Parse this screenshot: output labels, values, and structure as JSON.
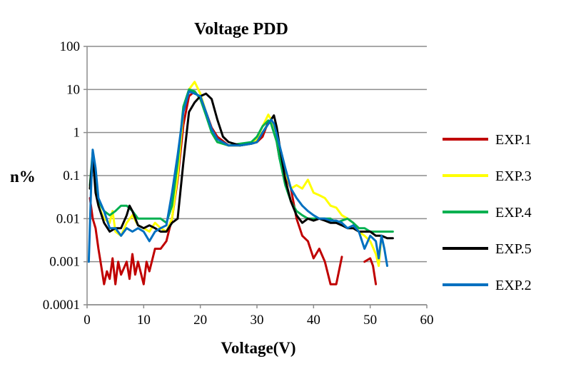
{
  "chart_data": {
    "type": "line",
    "title": "Voltage PDD",
    "xlabel": "Voltage(V)",
    "ylabel": "n%",
    "xlim": [
      0,
      60
    ],
    "ylim": [
      0.0001,
      100
    ],
    "yscale": "log",
    "grid": true,
    "legend_position": "right",
    "x_ticks": [
      "0",
      "10",
      "20",
      "30",
      "40",
      "50",
      "60"
    ],
    "y_ticks": [
      "0.0001",
      "0.001",
      "0.01",
      "0.1",
      "1",
      "10",
      "100"
    ],
    "series": [
      {
        "name": "EXP.1",
        "color": "#c00000",
        "points": [
          [
            0.5,
            0.03
          ],
          [
            1,
            0.01
          ],
          [
            1.5,
            0.006
          ],
          [
            2,
            0.002
          ],
          [
            2.5,
            0.0008
          ],
          [
            3,
            0.0003
          ],
          [
            3.5,
            0.0006
          ],
          [
            4,
            0.0004
          ],
          [
            4.5,
            0.0012
          ],
          [
            5,
            0.0003
          ],
          [
            5.5,
            0.001
          ],
          [
            6,
            0.0005
          ],
          [
            7,
            0.001
          ],
          [
            7.5,
            0.0004
          ],
          [
            8,
            0.0015
          ],
          [
            8.5,
            0.0005
          ],
          [
            9,
            0.001
          ],
          [
            10,
            0.0003
          ],
          [
            10.5,
            0.001
          ],
          [
            11,
            0.0006
          ],
          [
            12,
            0.002
          ],
          [
            13,
            0.002
          ],
          [
            14,
            0.003
          ],
          [
            15,
            0.01
          ],
          [
            16,
            0.08
          ],
          [
            17,
            1.5
          ],
          [
            18,
            7
          ],
          [
            19,
            9
          ],
          [
            20,
            6
          ],
          [
            21,
            3
          ],
          [
            22,
            1.3
          ],
          [
            23,
            0.8
          ],
          [
            25,
            0.5
          ],
          [
            27,
            0.5
          ],
          [
            29,
            0.55
          ],
          [
            30,
            0.6
          ],
          [
            31,
            0.8
          ],
          [
            32,
            1.8
          ],
          [
            33,
            1.5
          ],
          [
            33.5,
            0.6
          ],
          [
            34,
            0.25
          ],
          [
            35,
            0.1
          ],
          [
            36,
            0.05
          ],
          [
            37,
            0.01
          ],
          [
            38,
            0.004
          ],
          [
            39,
            0.003
          ],
          [
            40,
            0.0012
          ],
          [
            41,
            0.002
          ],
          [
            42,
            0.001
          ],
          [
            43,
            0.0003
          ],
          [
            44,
            0.0003
          ],
          [
            45,
            0.0013
          ],
          [
            47,
            0.0003
          ],
          [
            49,
            0.001
          ],
          [
            50,
            0.0012
          ],
          [
            50.5,
            0.0008
          ],
          [
            51,
            0.0003
          ]
        ],
        "gaps_after_x": [
          45,
          47
        ]
      },
      {
        "name": "EXP.3",
        "color": "#ffff00",
        "points": [
          [
            0.5,
            0.05
          ],
          [
            1,
            0.3
          ],
          [
            1.5,
            0.05
          ],
          [
            2,
            0.02
          ],
          [
            3,
            0.01
          ],
          [
            4,
            0.008
          ],
          [
            4.5,
            0.015
          ],
          [
            5,
            0.005
          ],
          [
            6,
            0.004
          ],
          [
            7,
            0.008
          ],
          [
            8,
            0.012
          ],
          [
            9,
            0.007
          ],
          [
            10,
            0.006
          ],
          [
            11,
            0.005
          ],
          [
            12,
            0.008
          ],
          [
            13,
            0.006
          ],
          [
            14,
            0.005
          ],
          [
            15,
            0.01
          ],
          [
            16,
            0.1
          ],
          [
            17,
            3
          ],
          [
            18,
            10
          ],
          [
            19,
            15
          ],
          [
            20,
            8
          ],
          [
            21,
            3
          ],
          [
            22,
            1
          ],
          [
            23,
            0.6
          ],
          [
            25,
            0.5
          ],
          [
            27,
            0.5
          ],
          [
            29,
            0.55
          ],
          [
            30,
            0.7
          ],
          [
            31,
            1.4
          ],
          [
            32,
            2.6
          ],
          [
            32.5,
            2
          ],
          [
            33.5,
            0.8
          ],
          [
            34,
            0.3
          ],
          [
            35,
            0.12
          ],
          [
            36,
            0.05
          ],
          [
            37,
            0.06
          ],
          [
            38,
            0.05
          ],
          [
            39,
            0.08
          ],
          [
            40,
            0.04
          ],
          [
            41,
            0.035
          ],
          [
            42,
            0.03
          ],
          [
            43,
            0.02
          ],
          [
            44,
            0.018
          ],
          [
            45,
            0.012
          ],
          [
            46,
            0.01
          ],
          [
            47,
            0.008
          ],
          [
            48,
            0.005
          ],
          [
            49,
            0.004
          ],
          [
            50,
            0.003
          ],
          [
            51,
            0.0015
          ],
          [
            51.5,
            0.0008
          ],
          [
            52,
            0.004
          ]
        ]
      },
      {
        "name": "EXP.4",
        "color": "#00b050",
        "points": [
          [
            0.5,
            0.06
          ],
          [
            1,
            0.35
          ],
          [
            1.5,
            0.06
          ],
          [
            2,
            0.025
          ],
          [
            3,
            0.015
          ],
          [
            4,
            0.012
          ],
          [
            5,
            0.015
          ],
          [
            6,
            0.02
          ],
          [
            7,
            0.02
          ],
          [
            8,
            0.015
          ],
          [
            9,
            0.01
          ],
          [
            10,
            0.01
          ],
          [
            11,
            0.01
          ],
          [
            12,
            0.01
          ],
          [
            13,
            0.01
          ],
          [
            14,
            0.008
          ],
          [
            15,
            0.02
          ],
          [
            16,
            0.2
          ],
          [
            17,
            4
          ],
          [
            18,
            10
          ],
          [
            19,
            9
          ],
          [
            20,
            6
          ],
          [
            21,
            2.5
          ],
          [
            22,
            1
          ],
          [
            23,
            0.6
          ],
          [
            25,
            0.5
          ],
          [
            27,
            0.55
          ],
          [
            29,
            0.6
          ],
          [
            30,
            0.8
          ],
          [
            31,
            1.4
          ],
          [
            32,
            1.9
          ],
          [
            32.5,
            1.6
          ],
          [
            33.5,
            0.6
          ],
          [
            34,
            0.25
          ],
          [
            35,
            0.06
          ],
          [
            36,
            0.025
          ],
          [
            37,
            0.015
          ],
          [
            38,
            0.012
          ],
          [
            39,
            0.01
          ],
          [
            40,
            0.01
          ],
          [
            41,
            0.01
          ],
          [
            42,
            0.01
          ],
          [
            43,
            0.01
          ],
          [
            44,
            0.008
          ],
          [
            45,
            0.009
          ],
          [
            46,
            0.01
          ],
          [
            47,
            0.008
          ],
          [
            48,
            0.006
          ],
          [
            49,
            0.006
          ],
          [
            50,
            0.005
          ],
          [
            51,
            0.005
          ],
          [
            52,
            0.005
          ],
          [
            53,
            0.005
          ],
          [
            54,
            0.005
          ]
        ]
      },
      {
        "name": "EXP.5",
        "color": "#000000",
        "points": [
          [
            0.5,
            0.05
          ],
          [
            1,
            0.3
          ],
          [
            1.5,
            0.04
          ],
          [
            2,
            0.02
          ],
          [
            3,
            0.008
          ],
          [
            4,
            0.005
          ],
          [
            5,
            0.006
          ],
          [
            6,
            0.006
          ],
          [
            7,
            0.012
          ],
          [
            7.5,
            0.02
          ],
          [
            8,
            0.015
          ],
          [
            9,
            0.007
          ],
          [
            10,
            0.006
          ],
          [
            11,
            0.007
          ],
          [
            12,
            0.006
          ],
          [
            13,
            0.005
          ],
          [
            14,
            0.005
          ],
          [
            15,
            0.008
          ],
          [
            16,
            0.01
          ],
          [
            17,
            0.2
          ],
          [
            18,
            3
          ],
          [
            19,
            5
          ],
          [
            20,
            7
          ],
          [
            21,
            8
          ],
          [
            22,
            6
          ],
          [
            23,
            2
          ],
          [
            24,
            0.8
          ],
          [
            25,
            0.6
          ],
          [
            27,
            0.5
          ],
          [
            29,
            0.55
          ],
          [
            30,
            0.6
          ],
          [
            31,
            1
          ],
          [
            32,
            1.6
          ],
          [
            33,
            2.5
          ],
          [
            33.5,
            1.3
          ],
          [
            34,
            0.5
          ],
          [
            35,
            0.08
          ],
          [
            36,
            0.025
          ],
          [
            37,
            0.012
          ],
          [
            38,
            0.008
          ],
          [
            39,
            0.01
          ],
          [
            40,
            0.009
          ],
          [
            41,
            0.01
          ],
          [
            42,
            0.009
          ],
          [
            43,
            0.008
          ],
          [
            44,
            0.008
          ],
          [
            45,
            0.007
          ],
          [
            46,
            0.006
          ],
          [
            47,
            0.006
          ],
          [
            48,
            0.005
          ],
          [
            49,
            0.005
          ],
          [
            50,
            0.005
          ],
          [
            51,
            0.004
          ],
          [
            52,
            0.004
          ],
          [
            53,
            0.0035
          ],
          [
            54,
            0.0035
          ]
        ]
      },
      {
        "name": "EXP.2",
        "color": "#0070c0",
        "points": [
          [
            0.3,
            0.001
          ],
          [
            0.7,
            0.05
          ],
          [
            1,
            0.4
          ],
          [
            1.5,
            0.15
          ],
          [
            2,
            0.03
          ],
          [
            3,
            0.015
          ],
          [
            4,
            0.006
          ],
          [
            5,
            0.006
          ],
          [
            6,
            0.004
          ],
          [
            7,
            0.006
          ],
          [
            8,
            0.005
          ],
          [
            9,
            0.006
          ],
          [
            10,
            0.005
          ],
          [
            11,
            0.003
          ],
          [
            12,
            0.005
          ],
          [
            13,
            0.006
          ],
          [
            14,
            0.007
          ],
          [
            15,
            0.04
          ],
          [
            16,
            0.3
          ],
          [
            17,
            3
          ],
          [
            18,
            9
          ],
          [
            19,
            8
          ],
          [
            20,
            7
          ],
          [
            21,
            3
          ],
          [
            22,
            1.2
          ],
          [
            23,
            0.7
          ],
          [
            25,
            0.5
          ],
          [
            27,
            0.5
          ],
          [
            29,
            0.55
          ],
          [
            30,
            0.6
          ],
          [
            31,
            1
          ],
          [
            32,
            1.6
          ],
          [
            32.5,
            2
          ],
          [
            33,
            1.6
          ],
          [
            34,
            0.5
          ],
          [
            35,
            0.15
          ],
          [
            36,
            0.05
          ],
          [
            37,
            0.03
          ],
          [
            38,
            0.02
          ],
          [
            39,
            0.015
          ],
          [
            40,
            0.012
          ],
          [
            41,
            0.01
          ],
          [
            42,
            0.01
          ],
          [
            43,
            0.009
          ],
          [
            44,
            0.009
          ],
          [
            45,
            0.008
          ],
          [
            46,
            0.006
          ],
          [
            47,
            0.007
          ],
          [
            48,
            0.005
          ],
          [
            49,
            0.002
          ],
          [
            50,
            0.004
          ],
          [
            51,
            0.003
          ],
          [
            51.5,
            0.0012
          ],
          [
            52,
            0.004
          ],
          [
            52.5,
            0.002
          ],
          [
            53,
            0.0008
          ]
        ]
      }
    ]
  }
}
